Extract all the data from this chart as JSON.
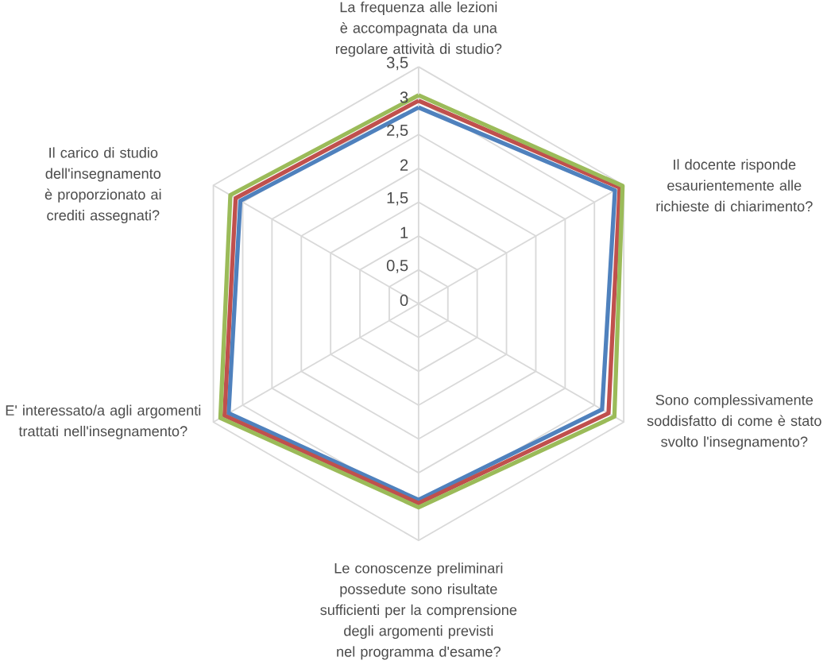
{
  "chart_data": {
    "type": "radar",
    "categories": [
      "La frequenza alle lezioni è accompagnata da una regolare attività di studio?",
      "Il docente risponde esaurientemente alle richieste di chiarimento?",
      "Sono complessivamente soddisfatto di come è stato svolto l'insegnamento?",
      "Le conoscenze preliminari possedute sono risultate sufficienti per la comprensione degli argomenti previsti nel programma d'esame?",
      "E' interessato/a agli argomenti trattati nell'insegnamento?",
      "Il carico di studio dell'insegnamento è proporzionato ai crediti assegnati?"
    ],
    "series": [
      {
        "color": "#4f81bd",
        "values": [
          2.9,
          3.35,
          3.13,
          2.9,
          3.24,
          3.04
        ]
      },
      {
        "color": "#c0504d",
        "values": [
          3.0,
          3.43,
          3.24,
          2.95,
          3.31,
          3.12
        ]
      },
      {
        "color": "#9bbb59",
        "values": [
          3.08,
          3.48,
          3.34,
          3.01,
          3.38,
          3.21
        ]
      }
    ],
    "ylim": [
      0,
      3.5
    ],
    "yticks": [
      0,
      {
        "value": 0.5,
        "label": "0,5"
      },
      1,
      {
        "value": 1.5,
        "label": "1,5"
      },
      2,
      {
        "value": 2.5,
        "label": "2,5"
      },
      3,
      {
        "value": 3.5,
        "label": "3,5"
      }
    ],
    "grid": true
  }
}
